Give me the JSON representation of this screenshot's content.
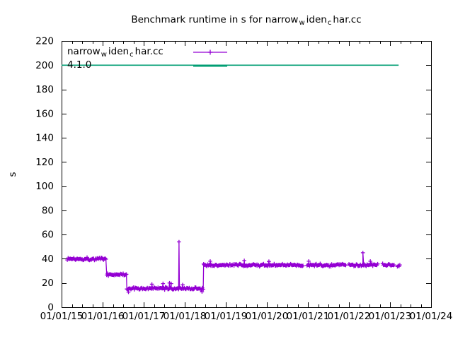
{
  "window": {
    "background": "#ffffff"
  },
  "title": {
    "part1": "Benchmark runtime in s for narrow",
    "sub1": "w",
    "part2": "iden",
    "sub2": "c",
    "part3": "har.cc"
  },
  "ylabel": "s",
  "legend": {
    "position": "top-left",
    "entries": [
      {
        "label_part1": "narrow",
        "label_sub1": "w",
        "label_part2": "iden",
        "label_sub2": "c",
        "label_part3": "har.cc",
        "color": "#9400d3",
        "style": "linespoints",
        "marker": "plus"
      },
      {
        "label": "4.1.0",
        "color": "#009e73",
        "style": "line"
      }
    ]
  },
  "chart_data": {
    "type": "line",
    "title": "Benchmark runtime in s for narrow_widen_char.cc",
    "xlabel": "",
    "ylabel": "s",
    "ylim": [
      0,
      220
    ],
    "ytick_step": 20,
    "yticks": [
      0,
      20,
      40,
      60,
      80,
      100,
      120,
      140,
      160,
      180,
      200,
      220
    ],
    "xticks": [
      "01/01/15",
      "01/01/16",
      "01/01/17",
      "01/01/18",
      "01/01/19",
      "01/01/20",
      "01/01/21",
      "01/01/22",
      "01/01/23",
      "01/01/24"
    ],
    "x_range_years": [
      0,
      9
    ],
    "x_minor_per_major": 4,
    "grid": false,
    "legend_position": "top-left",
    "series": [
      {
        "name": "narrow_widen_char.cc",
        "color": "#9400d3",
        "style": "linespoints",
        "marker": "plus",
        "point_step_years": 0.02,
        "segments": [
          {
            "from": "2015-02",
            "to": "2016-02",
            "x_start_years": 0.14,
            "x_end_years": 1.1,
            "level_s": 40.0,
            "noise_s": 1.5
          },
          {
            "from": "2016-02",
            "to": "2016-08",
            "x_start_years": 1.1,
            "x_end_years": 1.59,
            "level_s": 27.0,
            "noise_s": 1.2
          },
          {
            "from": "2016-08",
            "to": "2018-06",
            "x_start_years": 1.59,
            "x_end_years": 3.46,
            "level_s": 15.5,
            "noise_s": 1.3
          },
          {
            "from": "2018-06",
            "to": "2023-04",
            "x_start_years": 3.46,
            "x_end_years": 8.24,
            "level_s": 34.8,
            "noise_s": 1.3
          }
        ],
        "gaps_years": [
          [
            5.88,
            5.97
          ],
          [
            6.93,
            6.99
          ],
          [
            7.7,
            7.8
          ],
          [
            8.1,
            8.16
          ]
        ],
        "outliers": [
          {
            "x_years": 1.63,
            "value_s": 12.5
          },
          {
            "x_years": 2.2,
            "value_s": 19.0
          },
          {
            "x_years": 2.47,
            "value_s": 19.5
          },
          {
            "x_years": 2.63,
            "value_s": 20.0
          },
          {
            "x_years": 2.67,
            "value_s": 19.5
          },
          {
            "x_years": 2.86,
            "value_s": 54.0
          },
          {
            "x_years": 2.95,
            "value_s": 18.5
          },
          {
            "x_years": 3.42,
            "value_s": 12.8
          },
          {
            "x_years": 3.62,
            "value_s": 38.0
          },
          {
            "x_years": 4.45,
            "value_s": 38.5
          },
          {
            "x_years": 5.05,
            "value_s": 37.8
          },
          {
            "x_years": 6.02,
            "value_s": 38.0
          },
          {
            "x_years": 7.34,
            "value_s": 45.0
          },
          {
            "x_years": 7.52,
            "value_s": 38.0
          }
        ]
      },
      {
        "name": "4.1.0",
        "color": "#009e73",
        "style": "line",
        "constant_value_s": 200,
        "x_start_years": 0.0,
        "x_end_years": 8.21
      }
    ]
  }
}
